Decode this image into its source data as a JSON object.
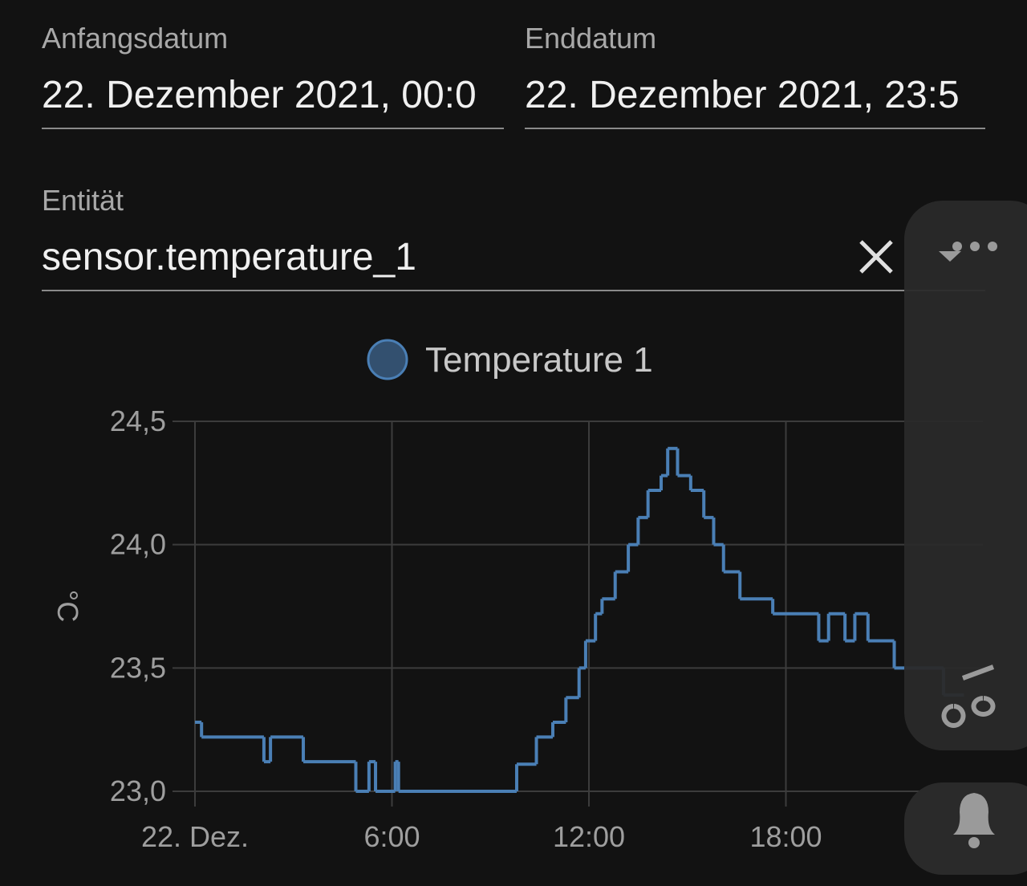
{
  "form": {
    "start": {
      "label": "Anfangsdatum",
      "value": "22. Dezember 2021, 00:0"
    },
    "end": {
      "label": "Enddatum",
      "value": "22. Dezember 2021, 23:5"
    },
    "entity": {
      "label": "Entität",
      "value": "sensor.temperature_1"
    }
  },
  "chart_data": {
    "type": "step-line",
    "ylabel": "°C",
    "x": [
      0,
      0.2,
      2.1,
      2.3,
      3.3,
      4.9,
      5.3,
      5.5,
      6.1,
      6.2,
      9.8,
      10.4,
      10.9,
      11.3,
      11.7,
      11.9,
      12.2,
      12.4,
      12.8,
      13.2,
      13.5,
      13.8,
      14.2,
      14.4,
      14.7,
      15.1,
      15.5,
      15.8,
      16.1,
      16.6,
      17.6,
      19.0,
      19.3,
      19.8,
      20.1,
      20.5,
      21.3,
      22.8,
      23.4
    ],
    "series": [
      {
        "name": "Temperature 1",
        "color": "#4a7fb5",
        "values": [
          23.28,
          23.22,
          23.12,
          23.22,
          23.12,
          23.0,
          23.12,
          23.0,
          23.12,
          23.0,
          23.11,
          23.22,
          23.28,
          23.38,
          23.5,
          23.61,
          23.72,
          23.78,
          23.89,
          24.0,
          24.11,
          24.22,
          24.28,
          24.39,
          24.28,
          24.22,
          24.11,
          24.0,
          23.89,
          23.78,
          23.72,
          23.61,
          23.72,
          23.61,
          23.72,
          23.61,
          23.5,
          23.39,
          23.39
        ]
      }
    ],
    "xlim": [
      0,
      24
    ],
    "xticks": [
      {
        "value": 0,
        "label": "22. Dez."
      },
      {
        "value": 6,
        "label": "6:00"
      },
      {
        "value": 12,
        "label": "12:00"
      },
      {
        "value": 18,
        "label": "18:00"
      }
    ],
    "ylim": [
      23.0,
      24.5
    ],
    "yticks": [
      {
        "value": 23.0,
        "label": "23,0"
      },
      {
        "value": 23.5,
        "label": "23,5"
      },
      {
        "value": 24.0,
        "label": "24,0"
      },
      {
        "value": 24.5,
        "label": "24,5"
      }
    ],
    "grid": true
  }
}
